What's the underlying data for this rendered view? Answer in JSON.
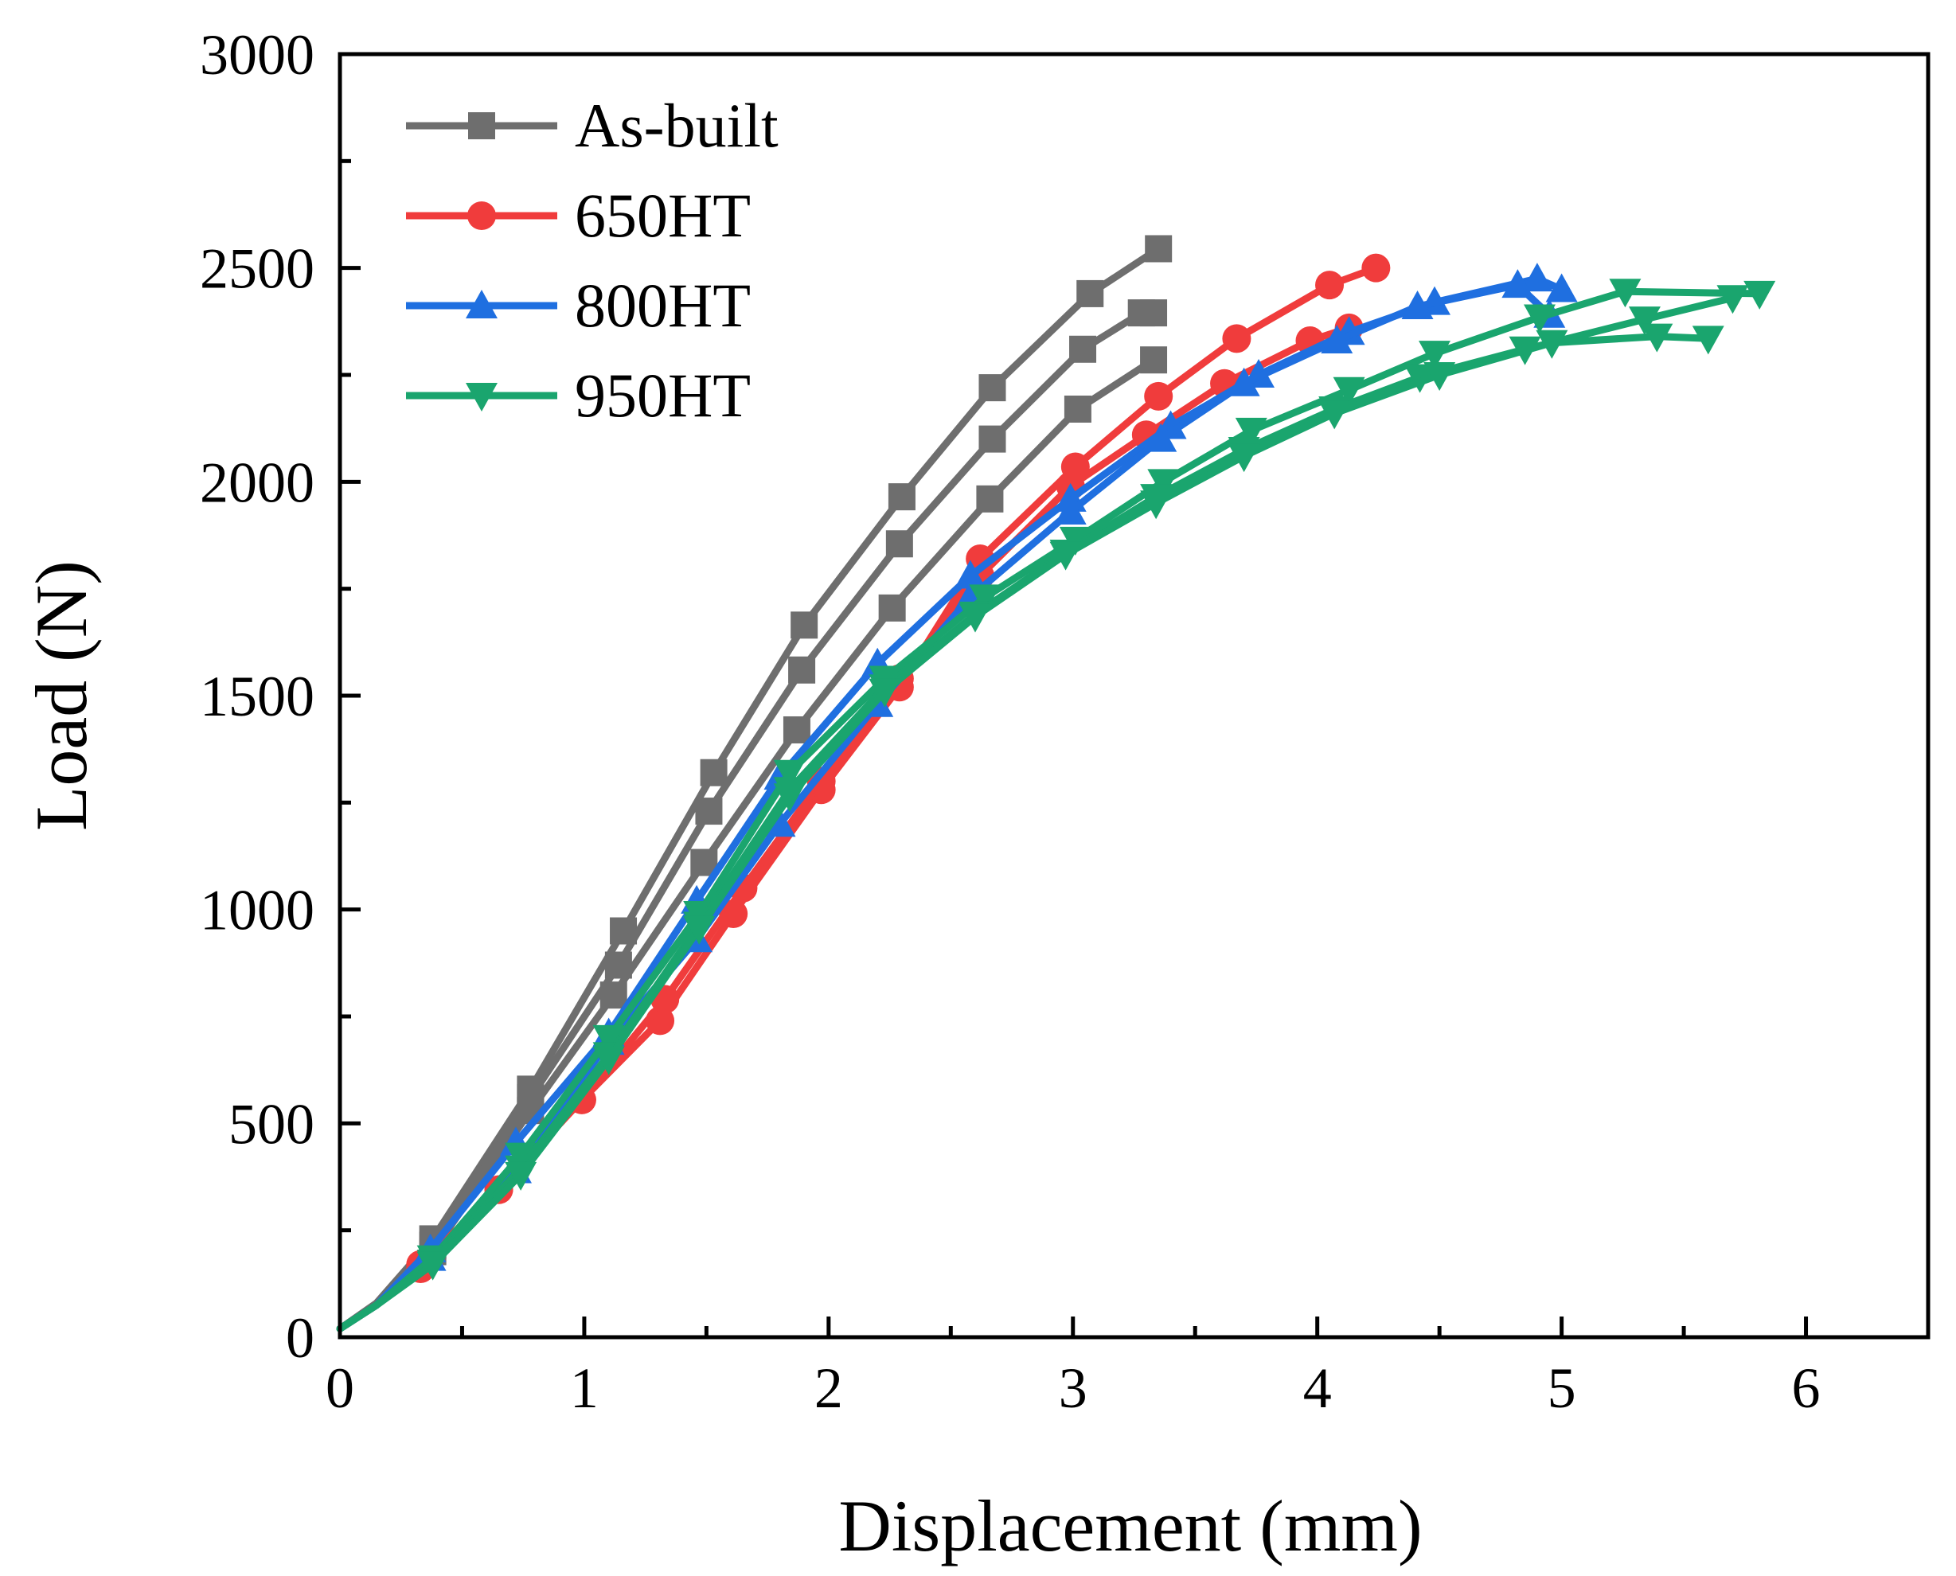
{
  "chart_data": {
    "type": "line",
    "title": "",
    "xlabel": "Displacement (mm)",
    "ylabel": "Load (N)",
    "xlim": [
      0,
      6.5
    ],
    "ylim": [
      0,
      3000
    ],
    "x_ticks": [
      0,
      1,
      2,
      3,
      4,
      5,
      6
    ],
    "x_tick_labels": [
      "0",
      "1",
      "2",
      "3",
      "4",
      "5",
      "6"
    ],
    "y_ticks": [
      0,
      500,
      1000,
      1500,
      2000,
      2500,
      3000
    ],
    "y_tick_labels": [
      "0",
      "500",
      "1000",
      "1500",
      "2000",
      "2500",
      "3000"
    ],
    "legend_position": "top-left",
    "grid": false,
    "series": [
      {
        "name": "As-built",
        "color": "#6e6e6e",
        "marker": "square",
        "curves": [
          [
            [
              0,
              20
            ],
            [
              0.15,
              80
            ],
            [
              0.38,
              230
            ],
            [
              0.78,
              580
            ],
            [
              1.16,
              950
            ],
            [
              1.53,
              1320
            ],
            [
              1.9,
              1665
            ],
            [
              2.3,
              1965
            ],
            [
              2.67,
              2220
            ],
            [
              3.07,
              2440
            ],
            [
              3.35,
              2545
            ]
          ],
          [
            [
              0,
              20
            ],
            [
              0.15,
              78
            ],
            [
              0.38,
              215
            ],
            [
              0.78,
              560
            ],
            [
              1.14,
              870
            ],
            [
              1.51,
              1230
            ],
            [
              1.89,
              1560
            ],
            [
              2.29,
              1855
            ],
            [
              2.67,
              2100
            ],
            [
              3.04,
              2310
            ],
            [
              3.28,
              2395
            ],
            [
              3.33,
              2395
            ]
          ],
          [
            [
              0,
              20
            ],
            [
              0.15,
              76
            ],
            [
              0.38,
              200
            ],
            [
              0.78,
              530
            ],
            [
              1.12,
              800
            ],
            [
              1.49,
              1110
            ],
            [
              1.87,
              1420
            ],
            [
              2.26,
              1705
            ],
            [
              2.66,
              1960
            ],
            [
              3.02,
              2170
            ],
            [
              3.33,
              2285
            ]
          ]
        ]
      },
      {
        "name": "650HT",
        "color": "#f03c3c",
        "marker": "circle",
        "curves": [
          [
            [
              0,
              20
            ],
            [
              0.15,
              75
            ],
            [
              0.33,
              170
            ],
            [
              0.65,
              345
            ],
            [
              0.99,
              555
            ],
            [
              1.31,
              740
            ],
            [
              1.61,
              990
            ],
            [
              1.97,
              1280
            ],
            [
              2.29,
              1520
            ],
            [
              2.62,
              1820
            ],
            [
              3.01,
              2035
            ],
            [
              3.35,
              2200
            ],
            [
              3.67,
              2335
            ],
            [
              4.05,
              2460
            ],
            [
              4.24,
              2500
            ]
          ],
          [
            [
              0,
              20
            ],
            [
              0.15,
              75
            ],
            [
              0.33,
              160
            ],
            [
              0.65,
              345
            ],
            [
              0.99,
              555
            ],
            [
              1.33,
              790
            ],
            [
              1.65,
              1050
            ],
            [
              1.97,
              1300
            ],
            [
              2.29,
              1540
            ],
            [
              2.62,
              1780
            ],
            [
              2.99,
              1990
            ],
            [
              3.3,
              2110
            ],
            [
              3.62,
              2230
            ],
            [
              3.97,
              2330
            ],
            [
              4.13,
              2360
            ]
          ]
        ]
      },
      {
        "name": "800HT",
        "color": "#1f6fe0",
        "marker": "triangle-up",
        "curves": [
          [
            [
              0,
              20
            ],
            [
              0.15,
              75
            ],
            [
              0.37,
              205
            ],
            [
              0.72,
              455
            ],
            [
              1.1,
              710
            ],
            [
              1.46,
              1020
            ],
            [
              1.8,
              1310
            ],
            [
              2.2,
              1575
            ],
            [
              2.58,
              1780
            ],
            [
              2.99,
              1960
            ],
            [
              3.4,
              2130
            ],
            [
              3.76,
              2250
            ],
            [
              4.13,
              2350
            ],
            [
              4.48,
              2420
            ],
            [
              4.9,
              2475
            ],
            [
              5.0,
              2450
            ]
          ],
          [
            [
              0,
              20
            ],
            [
              0.15,
              75
            ],
            [
              0.37,
              185
            ],
            [
              0.72,
              390
            ],
            [
              1.1,
              690
            ],
            [
              1.46,
              930
            ],
            [
              1.8,
              1200
            ],
            [
              2.2,
              1480
            ],
            [
              2.58,
              1730
            ],
            [
              2.99,
              1930
            ],
            [
              3.36,
              2100
            ],
            [
              3.7,
              2230
            ],
            [
              4.08,
              2330
            ],
            [
              4.41,
              2410
            ],
            [
              4.82,
              2460
            ],
            [
              4.95,
              2390
            ]
          ]
        ]
      },
      {
        "name": "950HT",
        "color": "#1aa56e",
        "marker": "triangle-down",
        "curves": [
          [
            [
              0,
              20
            ],
            [
              0.15,
              75
            ],
            [
              0.38,
              185
            ],
            [
              0.74,
              425
            ],
            [
              1.1,
              700
            ],
            [
              1.47,
              990
            ],
            [
              1.84,
              1320
            ],
            [
              2.23,
              1540
            ],
            [
              2.64,
              1730
            ],
            [
              3.01,
              1865
            ],
            [
              3.37,
              2000
            ],
            [
              3.73,
              2120
            ],
            [
              4.13,
              2215
            ],
            [
              4.48,
              2300
            ],
            [
              4.91,
              2385
            ],
            [
              5.26,
              2445
            ],
            [
              5.81,
              2440
            ]
          ],
          [
            [
              0,
              20
            ],
            [
              0.15,
              75
            ],
            [
              0.38,
              175
            ],
            [
              0.74,
              395
            ],
            [
              1.1,
              660
            ],
            [
              1.47,
              965
            ],
            [
              1.84,
              1280
            ],
            [
              2.23,
              1520
            ],
            [
              2.6,
              1690
            ],
            [
              2.97,
              1835
            ],
            [
              3.34,
              1965
            ],
            [
              3.7,
              2075
            ],
            [
              4.07,
              2170
            ],
            [
              4.42,
              2245
            ],
            [
              4.85,
              2310
            ],
            [
              5.34,
              2380
            ],
            [
              5.7,
              2430
            ]
          ],
          [
            [
              0,
              20
            ],
            [
              0.15,
              75
            ],
            [
              0.38,
              170
            ],
            [
              0.74,
              380
            ],
            [
              1.1,
              650
            ],
            [
              1.47,
              955
            ],
            [
              1.84,
              1265
            ],
            [
              2.23,
              1510
            ],
            [
              2.6,
              1685
            ],
            [
              2.97,
              1830
            ],
            [
              3.34,
              1950
            ],
            [
              3.7,
              2060
            ],
            [
              4.07,
              2160
            ],
            [
              4.5,
              2250
            ],
            [
              4.96,
              2325
            ],
            [
              5.39,
              2340
            ],
            [
              5.6,
              2335
            ]
          ]
        ]
      }
    ]
  }
}
